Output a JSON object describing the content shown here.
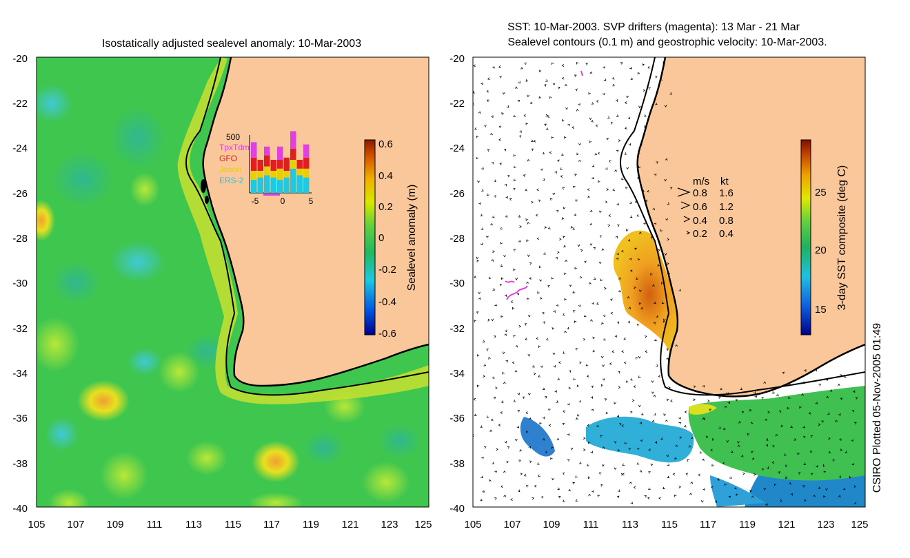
{
  "left_panel": {
    "title": "Isostatically adjusted sealevel anomaly: 10-Mar-2003",
    "colorbar": {
      "label": "Sealevel anomaly (m)",
      "ticks": [
        "0.6",
        "0.4",
        "0.2",
        "0",
        "-0.2",
        "-0.4",
        "-0.6"
      ]
    },
    "inset": {
      "ymax_label": "500",
      "legend": [
        {
          "name": "TpxTdm",
          "color": "#e040e0"
        },
        {
          "name": "GFO",
          "color": "#e02020"
        },
        {
          "name": "Jason",
          "color": "#e8d000"
        },
        {
          "name": "ERS-2",
          "color": "#20c8e0"
        }
      ],
      "xticks": [
        "-5",
        "0",
        "5"
      ],
      "bars": [
        {
          "ers": 0.12,
          "jason": 0.08,
          "gfo": 0.12,
          "tpx": 0.14
        },
        {
          "ers": 0.14,
          "jason": 0.06,
          "gfo": 0.1,
          "tpx": 0.0
        },
        {
          "ers": 0.16,
          "jason": 0.08,
          "gfo": 0.1,
          "tpx": 0.08
        },
        {
          "ers": 0.14,
          "jason": 0.06,
          "gfo": 0.1,
          "tpx": 0.0
        },
        {
          "ers": 0.12,
          "jason": 0.1,
          "gfo": 0.08,
          "tpx": 0.12
        },
        {
          "ers": 0.14,
          "jason": 0.06,
          "gfo": 0.12,
          "tpx": 0.0
        },
        {
          "ers": 0.22,
          "jason": 0.08,
          "gfo": 0.1,
          "tpx": 0.16
        },
        {
          "ers": 0.16,
          "jason": 0.06,
          "gfo": 0.08,
          "tpx": 0.0
        },
        {
          "ers": 0.14,
          "jason": 0.08,
          "gfo": 0.1,
          "tpx": 0.12
        }
      ]
    }
  },
  "right_panel": {
    "title_line1": "SST: 10-Mar-2003. SVP drifters (magenta): 13 Mar - 21 Mar",
    "title_line2": "Sealevel contours (0.1 m) and geostrophic velocity: 10-Mar-2003.",
    "colorbar": {
      "label": "3-day SST composite (deg C)",
      "ticks": [
        "25",
        "20",
        "15"
      ]
    },
    "velocity_key": {
      "header_ms": "m/s",
      "header_kt": "kt",
      "rows": [
        {
          "ms": "0.8",
          "kt": "1.6"
        },
        {
          "ms": "0.6",
          "kt": "1.2"
        },
        {
          "ms": "0.4",
          "kt": "0.8"
        },
        {
          "ms": "0.2",
          "kt": "0.4"
        }
      ]
    },
    "credit": "CSIRO Plotted 05-Nov-2005 01:49"
  },
  "axes": {
    "lat_ticks": [
      "-20",
      "-22",
      "-24",
      "-26",
      "-28",
      "-30",
      "-32",
      "-34",
      "-36",
      "-38",
      "-40"
    ],
    "lon_ticks": [
      "105",
      "107",
      "109",
      "111",
      "113",
      "115",
      "117",
      "119",
      "121",
      "123",
      "125"
    ]
  },
  "colors": {
    "land": "#f9c799",
    "ocean_green": "#3fc64f",
    "sea_light": "#7fdc4a",
    "coast": "#000000",
    "sst_warm": "#f0a020",
    "sst_cool": "#30b0d0"
  }
}
